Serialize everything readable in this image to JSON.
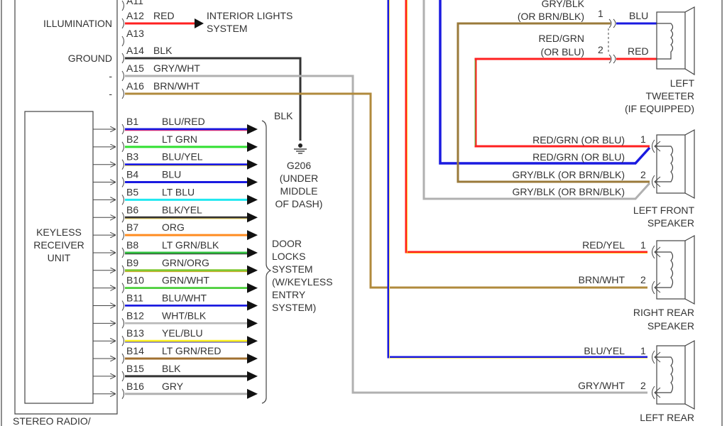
{
  "radio": {
    "label": "STEREO RADIO/",
    "keyless_unit": [
      "KEYLESS",
      "RECEIVER",
      "UNIT"
    ],
    "a_pins": [
      {
        "pin": "A11",
        "color_name": "",
        "function": ""
      },
      {
        "pin": "A12",
        "color_name": "RED",
        "function": "ILLUMINATION",
        "colors": [
          "#ff2020",
          "#ff2020"
        ]
      },
      {
        "pin": "A13",
        "color_name": "",
        "function": ""
      },
      {
        "pin": "A14",
        "color_name": "BLK",
        "function": "GROUND",
        "colors": [
          "#333333",
          "#333333"
        ]
      },
      {
        "pin": "A15",
        "color_name": "GRY/WHT",
        "function": "-",
        "colors": [
          "#b0b0b0",
          "#ffffff"
        ]
      },
      {
        "pin": "A16",
        "color_name": "BRN/WHT",
        "function": "-",
        "colors": [
          "#b08a3c",
          "#ffffff"
        ]
      }
    ],
    "b_pins": [
      {
        "pin": "B1",
        "color_name": "BLU/RED",
        "colors": [
          "#1a1ae0",
          "#ff3060"
        ]
      },
      {
        "pin": "B2",
        "color_name": "LT GRN",
        "colors": [
          "#30e030",
          "#30e030"
        ]
      },
      {
        "pin": "B3",
        "color_name": "BLU/YEL",
        "colors": [
          "#1a1ae0",
          "#ffe860"
        ]
      },
      {
        "pin": "B4",
        "color_name": "BLU",
        "colors": [
          "#1a1ae0",
          "#1a1ae0"
        ]
      },
      {
        "pin": "B5",
        "color_name": "LT BLU",
        "colors": [
          "#20e8f0",
          "#20e8f0"
        ]
      },
      {
        "pin": "B6",
        "color_name": "BLK/YEL",
        "colors": [
          "#333333",
          "#ffe060"
        ]
      },
      {
        "pin": "B7",
        "color_name": "ORG",
        "colors": [
          "#ff8c20",
          "#ff8c20"
        ]
      },
      {
        "pin": "B8",
        "color_name": "LT GRN/BLK",
        "colors": [
          "#30c040",
          "#333333"
        ]
      },
      {
        "pin": "B9",
        "color_name": "GRN/ORG",
        "colors": [
          "#80c830",
          "#d0a020"
        ]
      },
      {
        "pin": "B10",
        "color_name": "GRN/WHT",
        "colors": [
          "#50d040",
          "#ffffff"
        ]
      },
      {
        "pin": "B11",
        "color_name": "BLU/WHT",
        "colors": [
          "#1a1ae0",
          "#ffffff"
        ]
      },
      {
        "pin": "B12",
        "color_name": "WHT/BLK",
        "colors": [
          "#b8b8b8",
          "#ffffff"
        ]
      },
      {
        "pin": "B13",
        "color_name": "YEL/BLU",
        "colors": [
          "#fff020",
          "#3030d0"
        ]
      },
      {
        "pin": "B14",
        "color_name": "LT GRN/RED",
        "colors": [
          "#a07030",
          "#a07030"
        ]
      },
      {
        "pin": "B15",
        "color_name": "BLK",
        "colors": [
          "#333333",
          "#333333"
        ]
      },
      {
        "pin": "B16",
        "color_name": "GRY",
        "colors": [
          "#b0b0b0",
          "#b0b0b0"
        ]
      }
    ]
  },
  "interior_lights": [
    "INTERIOR LIGHTS",
    "SYSTEM"
  ],
  "ground": {
    "wire": "BLK",
    "label": [
      "G206",
      "(UNDER",
      "MIDDLE",
      "OF DASH)"
    ]
  },
  "door_locks": [
    "DOOR",
    "LOCKS",
    "SYSTEM",
    "(W/KEYLESS",
    "ENTRY",
    "SYSTEM)"
  ],
  "speakers": {
    "left_tweeter": {
      "name": [
        "LEFT",
        "TWEETER",
        "(IF EQUIPPED)"
      ],
      "pin1_wire": [
        "GRY/BLK",
        "(OR BRN/BLK)"
      ],
      "pin1": "1",
      "pin1_lead": "BLU",
      "pin2_wire": [
        "RED/GRN",
        "(OR BLU)"
      ],
      "pin2": "2",
      "pin2_lead": "RED"
    },
    "left_front": {
      "name": [
        "LEFT FRONT",
        "SPEAKER"
      ],
      "wires": [
        "RED/GRN (OR BLU)",
        "RED/GRN (OR BLU)",
        "GRY/BLK (OR BRN/BLK)",
        "GRY/BLK (OR BRN/BLK)"
      ],
      "pin1": "1",
      "pin2": "2"
    },
    "right_rear": {
      "name": [
        "RIGHT REAR",
        "SPEAKER"
      ],
      "pin1_wire": "RED/YEL",
      "pin2_wire": "BRN/WHT",
      "pin1": "1",
      "pin2": "2"
    },
    "left_rear": {
      "name": [
        "LEFT REAR"
      ],
      "pin1_wire": "BLU/YEL",
      "pin2_wire": "GRY/WHT",
      "pin1": "1",
      "pin2": "2"
    }
  }
}
